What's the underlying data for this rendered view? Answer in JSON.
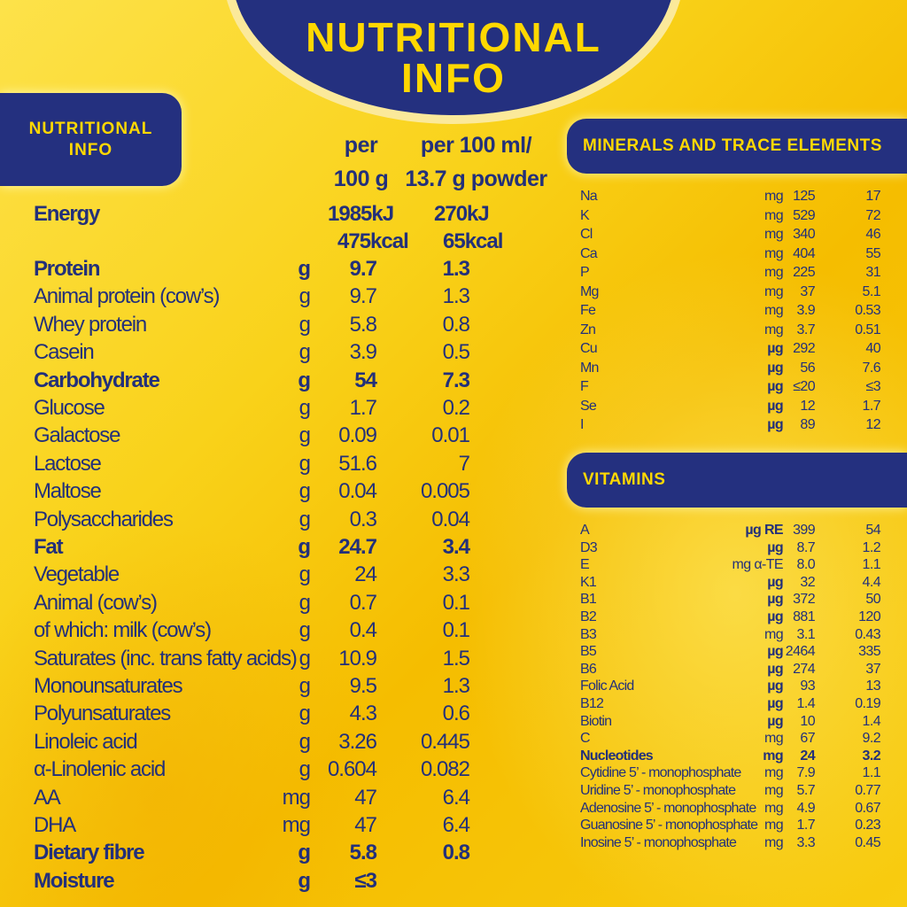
{
  "title": {
    "line1": "NUTRITIONAL",
    "line2": "INFO"
  },
  "left_header": {
    "line1": "NUTRITIONAL",
    "line2": "INFO"
  },
  "columns": {
    "per100g_line1": "per",
    "per100g_line2": "100 g",
    "per100ml_line1": "per 100 ml/",
    "per100ml_line2": "13.7 g powder"
  },
  "energy": {
    "label": "Energy",
    "kj_100g": "1985kJ",
    "kcal_100g": "475kcal",
    "kj_100ml": "270kJ",
    "kcal_100ml": "65kcal"
  },
  "nutrients": [
    {
      "label": "Protein",
      "unit": "g",
      "per100g": "9.7",
      "per100ml": "1.3",
      "bold": true
    },
    {
      "label": "Animal protein (cow’s)",
      "unit": "g",
      "per100g": "9.7",
      "per100ml": "1.3"
    },
    {
      "label": "Whey protein",
      "unit": "g",
      "per100g": "5.8",
      "per100ml": "0.8"
    },
    {
      "label": "Casein",
      "unit": "g",
      "per100g": "3.9",
      "per100ml": "0.5"
    },
    {
      "label": "Carbohydrate",
      "unit": "g",
      "per100g": "54",
      "per100ml": "7.3",
      "bold": true
    },
    {
      "label": "Glucose",
      "unit": "g",
      "per100g": "1.7",
      "per100ml": "0.2"
    },
    {
      "label": "Galactose",
      "unit": "g",
      "per100g": "0.09",
      "per100ml": "0.01"
    },
    {
      "label": "Lactose",
      "unit": "g",
      "per100g": "51.6",
      "per100ml": "7"
    },
    {
      "label": "Maltose",
      "unit": "g",
      "per100g": "0.04",
      "per100ml": "0.005"
    },
    {
      "label": "Polysaccharides",
      "unit": "g",
      "per100g": "0.3",
      "per100ml": "0.04"
    },
    {
      "label": "Fat",
      "unit": "g",
      "per100g": "24.7",
      "per100ml": "3.4",
      "bold": true
    },
    {
      "label": "Vegetable",
      "unit": "g",
      "per100g": "24",
      "per100ml": "3.3"
    },
    {
      "label": "Animal (cow’s)",
      "unit": "g",
      "per100g": "0.7",
      "per100ml": "0.1"
    },
    {
      "label": "of which: milk (cow’s)",
      "unit": "g",
      "per100g": "0.4",
      "per100ml": "0.1"
    },
    {
      "label": "Saturates (inc. trans fatty acids)",
      "unit": "g",
      "per100g": "10.9",
      "per100ml": "1.5"
    },
    {
      "label": "Monounsaturates",
      "unit": "g",
      "per100g": "9.5",
      "per100ml": "1.3"
    },
    {
      "label": "Polyunsaturates",
      "unit": "g",
      "per100g": "4.3",
      "per100ml": "0.6"
    },
    {
      "label": "Linoleic acid",
      "unit": "g",
      "per100g": "3.26",
      "per100ml": "0.445"
    },
    {
      "label": "α-Linolenic acid",
      "unit": "g",
      "per100g": "0.604",
      "per100ml": "0.082"
    },
    {
      "label": "AA",
      "unit": "mg",
      "per100g": "47",
      "per100ml": "6.4"
    },
    {
      "label": "DHA",
      "unit": "mg",
      "per100g": "47",
      "per100ml": "6.4"
    },
    {
      "label": "Dietary fibre",
      "unit": "g",
      "per100g": "5.8",
      "per100ml": "0.8",
      "bold": true
    },
    {
      "label": "Moisture",
      "unit": "g",
      "per100g": "≤3",
      "per100ml": "",
      "bold": true
    }
  ],
  "minerals": {
    "header": "MINERALS AND TRACE ELEMENTS",
    "rows": [
      {
        "label": "Na",
        "unit": "mg",
        "per100g": "125",
        "per100ml": "17"
      },
      {
        "label": "K",
        "unit": "mg",
        "per100g": "529",
        "per100ml": "72"
      },
      {
        "label": "Cl",
        "unit": "mg",
        "per100g": "340",
        "per100ml": "46"
      },
      {
        "label": "Ca",
        "unit": "mg",
        "per100g": "404",
        "per100ml": "55"
      },
      {
        "label": "P",
        "unit": "mg",
        "per100g": "225",
        "per100ml": "31"
      },
      {
        "label": "Mg",
        "unit": "mg",
        "per100g": "37",
        "per100ml": "5.1"
      },
      {
        "label": "Fe",
        "unit": "mg",
        "per100g": "3.9",
        "per100ml": "0.53"
      },
      {
        "label": "Zn",
        "unit": "mg",
        "per100g": "3.7",
        "per100ml": "0.51"
      },
      {
        "label": "Cu",
        "unit": "µg",
        "per100g": "292",
        "per100ml": "40"
      },
      {
        "label": "Mn",
        "unit": "µg",
        "per100g": "56",
        "per100ml": "7.6"
      },
      {
        "label": "F",
        "unit": "µg",
        "per100g": "≤20",
        "per100ml": "≤3"
      },
      {
        "label": "Se",
        "unit": "µg",
        "per100g": "12",
        "per100ml": "1.7"
      },
      {
        "label": "I",
        "unit": "µg",
        "per100g": "89",
        "per100ml": "12"
      }
    ]
  },
  "vitamins": {
    "header": "VITAMINS",
    "rows": [
      {
        "label": "A",
        "unit": "µg RE",
        "per100g": "399",
        "per100ml": "54"
      },
      {
        "label": "D3",
        "unit": "µg",
        "per100g": "8.7",
        "per100ml": "1.2"
      },
      {
        "label": "E",
        "unit": "mg α-TE",
        "per100g": "8.0",
        "per100ml": "1.1"
      },
      {
        "label": "K1",
        "unit": "µg",
        "per100g": "32",
        "per100ml": "4.4"
      },
      {
        "label": "B1",
        "unit": "µg",
        "per100g": "372",
        "per100ml": "50"
      },
      {
        "label": "B2",
        "unit": "µg",
        "per100g": "881",
        "per100ml": "120"
      },
      {
        "label": "B3",
        "unit": "mg",
        "per100g": "3.1",
        "per100ml": "0.43"
      },
      {
        "label": "B5",
        "unit": "µg",
        "per100g": "2464",
        "per100ml": "335"
      },
      {
        "label": "B6",
        "unit": "µg",
        "per100g": "274",
        "per100ml": "37"
      },
      {
        "label": "Folic Acid",
        "unit": "µg",
        "per100g": "93",
        "per100ml": "13"
      },
      {
        "label": "B12",
        "unit": "µg",
        "per100g": "1.4",
        "per100ml": "0.19"
      },
      {
        "label": "Biotin",
        "unit": "µg",
        "per100g": "10",
        "per100ml": "1.4"
      },
      {
        "label": "C",
        "unit": "mg",
        "per100g": "67",
        "per100ml": "9.2"
      },
      {
        "label": "Nucleotides",
        "unit": "mg",
        "per100g": "24",
        "per100ml": "3.2",
        "bold": true
      },
      {
        "label": "Cytidine 5’ - monophosphate",
        "unit": "mg",
        "per100g": "7.9",
        "per100ml": "1.1"
      },
      {
        "label": "Uridine 5’ - monophosphate",
        "unit": "mg",
        "per100g": "5.7",
        "per100ml": "0.77"
      },
      {
        "label": "Adenosine 5’ - monophosphate",
        "unit": "mg",
        "per100g": "4.9",
        "per100ml": "0.67"
      },
      {
        "label": "Guanosine 5’ - monophosphate",
        "unit": "mg",
        "per100g": "1.7",
        "per100ml": "0.23"
      },
      {
        "label": "Inosine 5’ - monophosphate",
        "unit": "mg",
        "per100g": "3.3",
        "per100ml": "0.45"
      }
    ]
  },
  "colors": {
    "navy": "#24307f",
    "yellow": "#ffd800",
    "background": "#f9d21a"
  }
}
